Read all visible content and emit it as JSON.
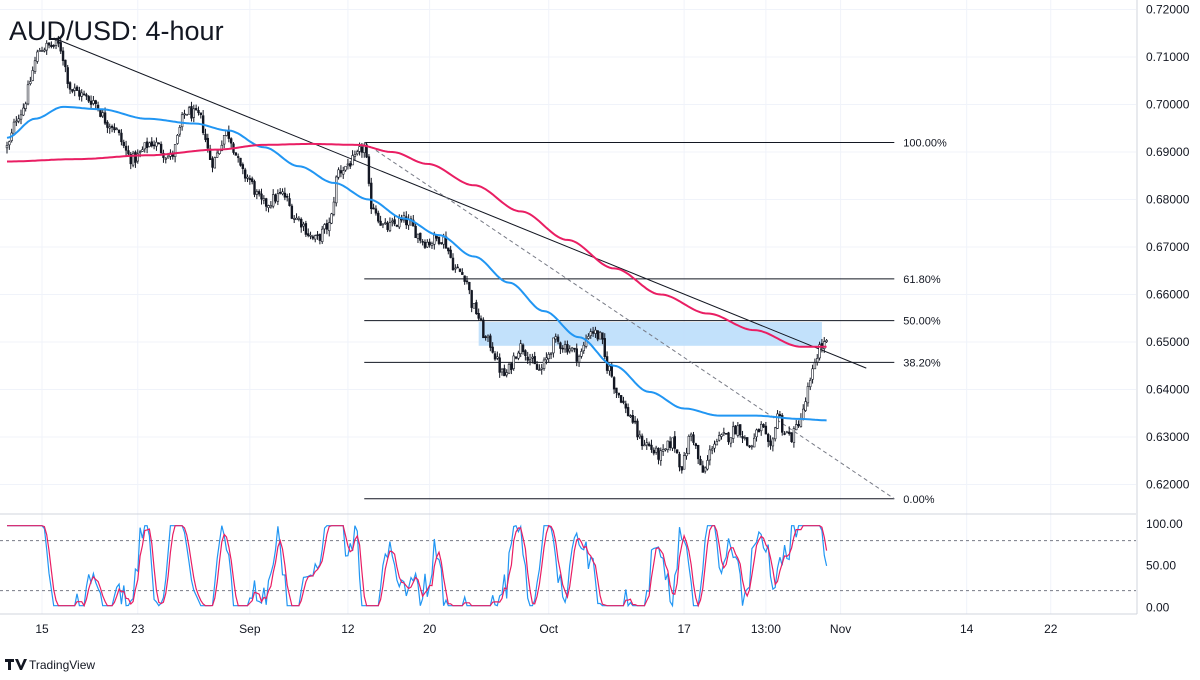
{
  "chart_data": {
    "type": "candlestick",
    "title": "AUD/USD: 4-hour",
    "watermark": "TradingView",
    "price_axis": {
      "ticks": [
        "0.72000",
        "0.71000",
        "0.70000",
        "0.69000",
        "0.68000",
        "0.67000",
        "0.66000",
        "0.65000",
        "0.64000",
        "0.63000",
        "0.62000"
      ],
      "range": [
        0.614,
        0.722
      ]
    },
    "time_axis": {
      "labels": [
        {
          "label": "15",
          "bar": 15
        },
        {
          "label": "23",
          "bar": 56
        },
        {
          "label": "Sep",
          "bar": 104
        },
        {
          "label": "12",
          "bar": 146
        },
        {
          "label": "20",
          "bar": 181
        },
        {
          "label": "Oct",
          "bar": 232
        },
        {
          "label": "17",
          "bar": 290
        },
        {
          "label": "13:00",
          "bar": 325
        },
        {
          "label": "Nov",
          "bar": 357
        },
        {
          "label": "14",
          "bar": 411
        },
        {
          "label": "22",
          "bar": 447
        }
      ]
    },
    "fibonacci": {
      "levels": [
        {
          "label": "100.00%",
          "value": 0.692
        },
        {
          "label": "61.80%",
          "value": 0.6633
        },
        {
          "label": "50.00%",
          "value": 0.6545
        },
        {
          "label": "38.20%",
          "value": 0.6457
        },
        {
          "label": "0.00%",
          "value": 0.617
        }
      ],
      "start_bar": 153,
      "end_bar": 380
    },
    "trendline": {
      "bar1": 20,
      "price1": 0.714,
      "bar2": 368,
      "price2": 0.6445
    },
    "dashed_line": {
      "bar1": 153,
      "price1": 0.692,
      "bar2": 380,
      "price2": 0.617
    },
    "supply_zone": {
      "bar1": 202,
      "bar2": 349,
      "top": 0.6542,
      "bottom": 0.6492
    },
    "series": [
      {
        "name": "",
        "color": "#2196f3"
      },
      {
        "name": "",
        "color": "#e91e63"
      }
    ],
    "anchors": [
      [
        0,
        0.691
      ],
      [
        5,
        0.698
      ],
      [
        15,
        0.712
      ],
      [
        22,
        0.7125
      ],
      [
        28,
        0.703
      ],
      [
        36,
        0.701
      ],
      [
        44,
        0.696
      ],
      [
        54,
        0.6885
      ],
      [
        62,
        0.692
      ],
      [
        70,
        0.689
      ],
      [
        77,
        0.6985
      ],
      [
        82,
        0.6975
      ],
      [
        88,
        0.688
      ],
      [
        94,
        0.694
      ],
      [
        102,
        0.685
      ],
      [
        110,
        0.679
      ],
      [
        118,
        0.681
      ],
      [
        124,
        0.676
      ],
      [
        132,
        0.6715
      ],
      [
        138,
        0.6745
      ],
      [
        142,
        0.686
      ],
      [
        148,
        0.688
      ],
      [
        153,
        0.691
      ],
      [
        156,
        0.679
      ],
      [
        162,
        0.674
      ],
      [
        170,
        0.6755
      ],
      [
        180,
        0.671
      ],
      [
        186,
        0.672
      ],
      [
        193,
        0.665
      ],
      [
        196,
        0.664
      ],
      [
        200,
        0.657
      ],
      [
        206,
        0.65
      ],
      [
        213,
        0.643
      ],
      [
        220,
        0.649
      ],
      [
        228,
        0.644
      ],
      [
        235,
        0.65
      ],
      [
        240,
        0.649
      ],
      [
        245,
        0.647
      ],
      [
        250,
        0.6525
      ],
      [
        254,
        0.651
      ],
      [
        257,
        0.645
      ],
      [
        262,
        0.639
      ],
      [
        266,
        0.635
      ],
      [
        272,
        0.629
      ],
      [
        280,
        0.626
      ],
      [
        285,
        0.629
      ],
      [
        289,
        0.624
      ],
      [
        293,
        0.6305
      ],
      [
        298,
        0.6225
      ],
      [
        303,
        0.629
      ],
      [
        308,
        0.63
      ],
      [
        313,
        0.632
      ],
      [
        318,
        0.628
      ],
      [
        323,
        0.632
      ],
      [
        327,
        0.627
      ],
      [
        330,
        0.635
      ],
      [
        333,
        0.631
      ],
      [
        336,
        0.63
      ],
      [
        340,
        0.634
      ],
      [
        344,
        0.641
      ],
      [
        346,
        0.646
      ],
      [
        348,
        0.649
      ],
      [
        351,
        0.6495
      ]
    ],
    "ma_blue_anchors": [
      [
        0,
        0.693
      ],
      [
        12,
        0.697
      ],
      [
        24,
        0.6995
      ],
      [
        40,
        0.699
      ],
      [
        60,
        0.697
      ],
      [
        80,
        0.696
      ],
      [
        95,
        0.6945
      ],
      [
        110,
        0.691
      ],
      [
        125,
        0.687
      ],
      [
        140,
        0.6835
      ],
      [
        155,
        0.68
      ],
      [
        170,
        0.676
      ],
      [
        185,
        0.6725
      ],
      [
        200,
        0.668
      ],
      [
        215,
        0.6625
      ],
      [
        230,
        0.6565
      ],
      [
        245,
        0.651
      ],
      [
        260,
        0.645
      ],
      [
        275,
        0.6395
      ],
      [
        290,
        0.636
      ],
      [
        305,
        0.6345
      ],
      [
        320,
        0.6345
      ],
      [
        340,
        0.6338
      ],
      [
        351,
        0.6335
      ]
    ],
    "ma_red_anchors": [
      [
        0,
        0.688
      ],
      [
        30,
        0.6885
      ],
      [
        60,
        0.6893
      ],
      [
        90,
        0.6905
      ],
      [
        110,
        0.6915
      ],
      [
        130,
        0.6917
      ],
      [
        150,
        0.6915
      ],
      [
        165,
        0.69
      ],
      [
        180,
        0.6875
      ],
      [
        200,
        0.683
      ],
      [
        220,
        0.6775
      ],
      [
        240,
        0.6715
      ],
      [
        260,
        0.6655
      ],
      [
        280,
        0.66
      ],
      [
        300,
        0.656
      ],
      [
        320,
        0.6525
      ],
      [
        340,
        0.649
      ],
      [
        351,
        0.649
      ]
    ],
    "rsi": {
      "ticks": [
        "100.00",
        "50.00",
        "0.00"
      ],
      "range": [
        -8,
        112
      ],
      "overbought": 80,
      "oversold": 20,
      "colors": {
        "k": "#2196f3",
        "d": "#e91e63"
      }
    }
  }
}
